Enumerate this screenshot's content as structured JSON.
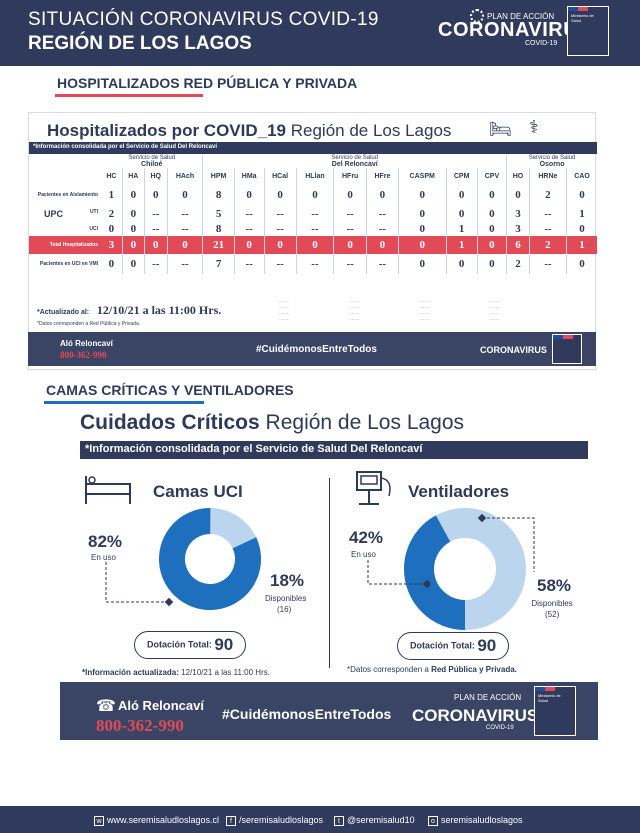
{
  "header": {
    "line1": "SITUACIÓN CORONAVIRUS COVID-19",
    "line2": "REGIÓN DE LOS LAGOS",
    "plan": "PLAN DE ACCIÓN",
    "brand": "CORONAVIRUS",
    "brand_sub": "COVID-19"
  },
  "section1": {
    "heading": "HOSPITALIZADOS  RED PÚBLICA Y PRIVADA",
    "title_bold": "Hospitalizados por COVID_19",
    "title_light": "Región de Los Lagos",
    "info": "*Información consolidada por el Servicio de Salud Del Reloncaví",
    "services": [
      {
        "label": "Servicio de Salud",
        "name": "Chiloé"
      },
      {
        "label": "Servicio de Salud",
        "name": "Del Reloncaví"
      },
      {
        "label": "Servicio de Salud",
        "name": "Osorno"
      }
    ],
    "columns": [
      "HC",
      "HA",
      "HQ",
      "HAch",
      "HPM",
      "HMa",
      "HCal",
      "HLlan",
      "HFru",
      "HFre",
      "CASPM",
      "CPM",
      "CPV",
      "HO",
      "HRNe",
      "CAO"
    ],
    "rows": [
      {
        "label": "Pacientes en Aislamiento",
        "values": [
          "1",
          "0",
          "0",
          "0",
          "8",
          "0",
          "0",
          "0",
          "0",
          "0",
          "0",
          "0",
          "0",
          "0",
          "2",
          "0"
        ]
      },
      {
        "label": "UTI",
        "values": [
          "2",
          "0",
          "--",
          "--",
          "5",
          "--",
          "--",
          "--",
          "--",
          "--",
          "0",
          "0",
          "0",
          "3",
          "--",
          "1"
        ]
      },
      {
        "label": "UCI",
        "values": [
          "0",
          "0",
          "--",
          "--",
          "8",
          "--",
          "--",
          "--",
          "--",
          "--",
          "0",
          "1",
          "0",
          "3",
          "--",
          "0"
        ]
      },
      {
        "label": "Total Hospitalizados",
        "values": [
          "3",
          "0",
          "0",
          "0",
          "21",
          "0",
          "0",
          "0",
          "0",
          "0",
          "0",
          "1",
          "0",
          "6",
          "2",
          "1"
        ]
      },
      {
        "label": "Pacientes en UCI en VMI",
        "values": [
          "0",
          "0",
          "--",
          "--",
          "7",
          "--",
          "--",
          "--",
          "--",
          "--",
          "0",
          "0",
          "0",
          "2",
          "--",
          "0"
        ]
      }
    ],
    "upc": "UPC",
    "updated_label": "*Actualizado al:",
    "updated_value": "12/10/21 a las 11:00 Hrs.",
    "datos": "*Datos corresponden a Red Pública y Privada."
  },
  "footer1": {
    "alo": "Aló Reloncaví",
    "phone": "800-362-990",
    "hashtag": "#CuidémonosEntreTodos",
    "brand": "CORONAVIRUS"
  },
  "section2": {
    "heading": "CAMAS  CRÍTICAS  Y  VENTILADORES",
    "title_bold": "Cuidados Críticos",
    "title_light": "Región de Los Lagos",
    "info": "*Información consolidada por el Servicio de Salud Del Reloncaví",
    "uci": {
      "title": "Camas UCI",
      "used_pct": "82%",
      "used_label": "En uso",
      "avail_pct": "18%",
      "avail_label": "Disponibles",
      "avail_count": "(16)",
      "used_fraction": 0.82,
      "total_label": "Dotación Total:",
      "total": "90"
    },
    "vent": {
      "title": "Ventiladores",
      "used_pct": "42%",
      "used_label": "En uso",
      "avail_pct": "58%",
      "avail_label": "Disponibles",
      "avail_count": "(52)",
      "used_fraction": 0.42,
      "total_label": "Dotación Total:",
      "total": "90"
    },
    "note_left_bold": "*Información actualizada:",
    "note_left": "12/10/21 a las 11:00 Hrs.",
    "note_right": "*Datos corresponden a",
    "note_right_bold": "Red Pública y Privada."
  },
  "footer2": {
    "alo": "Aló Reloncaví",
    "phone": "800-362-990",
    "hashtag": "#CuidémonosEntreTodos",
    "plan": "PLAN DE ACCIÓN",
    "brand": "CORONAVIRUS",
    "brand_sub": "COVID-19"
  },
  "bottom": {
    "web": "www.seremisaludloslagos.cl",
    "facebook": "/seremisaludloslagos",
    "twitter": "@seremisalud10",
    "instagram": "seremisaludloslagos"
  },
  "colors": {
    "navy": "#2f3a5c",
    "blue": "#1f6fbf",
    "light_blue": "#bcd5ee",
    "red": "#e24a57"
  }
}
